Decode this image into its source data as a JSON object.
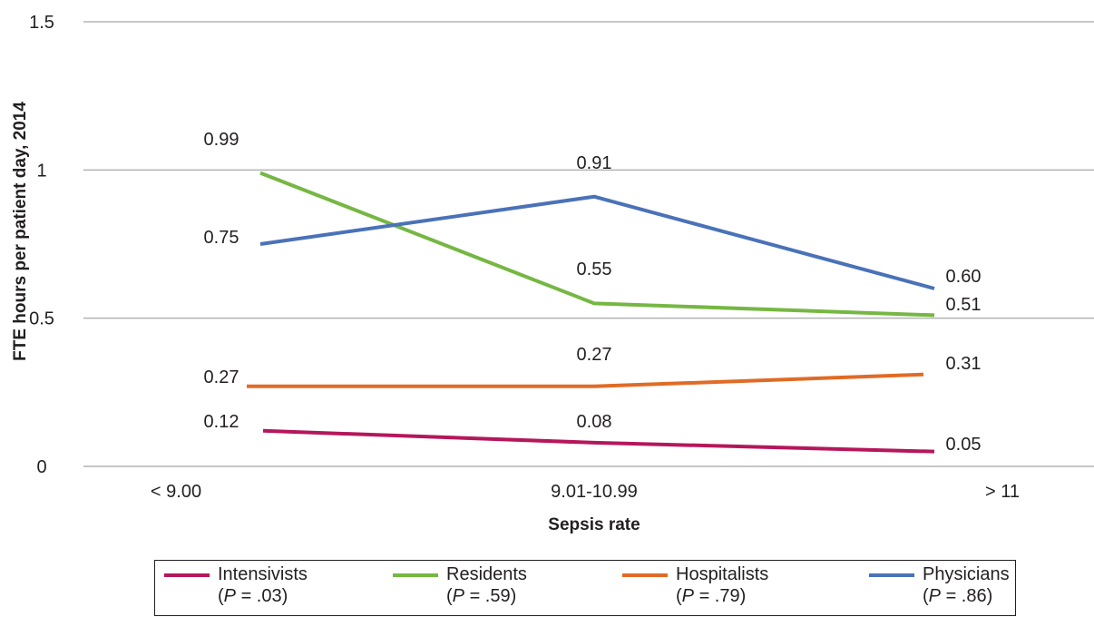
{
  "chart_data": {
    "type": "line",
    "title": "",
    "xlabel": "Sepsis rate",
    "ylabel": "FTE hours per patient day, 2014",
    "categories": [
      "< 9.00",
      "9.01-10.99",
      "> 11"
    ],
    "ylim": [
      0,
      1.5
    ],
    "yticks": [
      "0",
      "0.5",
      "1",
      "1.5"
    ],
    "grid": true,
    "legend_position": "bottom",
    "series": [
      {
        "name": "Intensivists",
        "p_text": "(P = .03)",
        "color": "#b5175b",
        "values": [
          0.12,
          0.08,
          0.05
        ],
        "labels": [
          "0.12",
          "0.08",
          "0.05"
        ]
      },
      {
        "name": "Residents",
        "p_text": "(P = .59)",
        "color": "#76b743",
        "values": [
          0.99,
          0.55,
          0.51
        ],
        "labels": [
          "0.99",
          "0.55",
          "0.51"
        ]
      },
      {
        "name": "Hospitalists",
        "p_text": "(P = .79)",
        "color": "#e06b26",
        "values": [
          0.27,
          0.27,
          0.31
        ],
        "labels": [
          "0.27",
          "0.27",
          "0.31"
        ]
      },
      {
        "name": "Physicians",
        "p_text": "(P = .86)",
        "color": "#4a72b8",
        "values": [
          0.75,
          0.91,
          0.6
        ],
        "labels": [
          "0.75",
          "0.91",
          "0.60"
        ]
      }
    ]
  }
}
